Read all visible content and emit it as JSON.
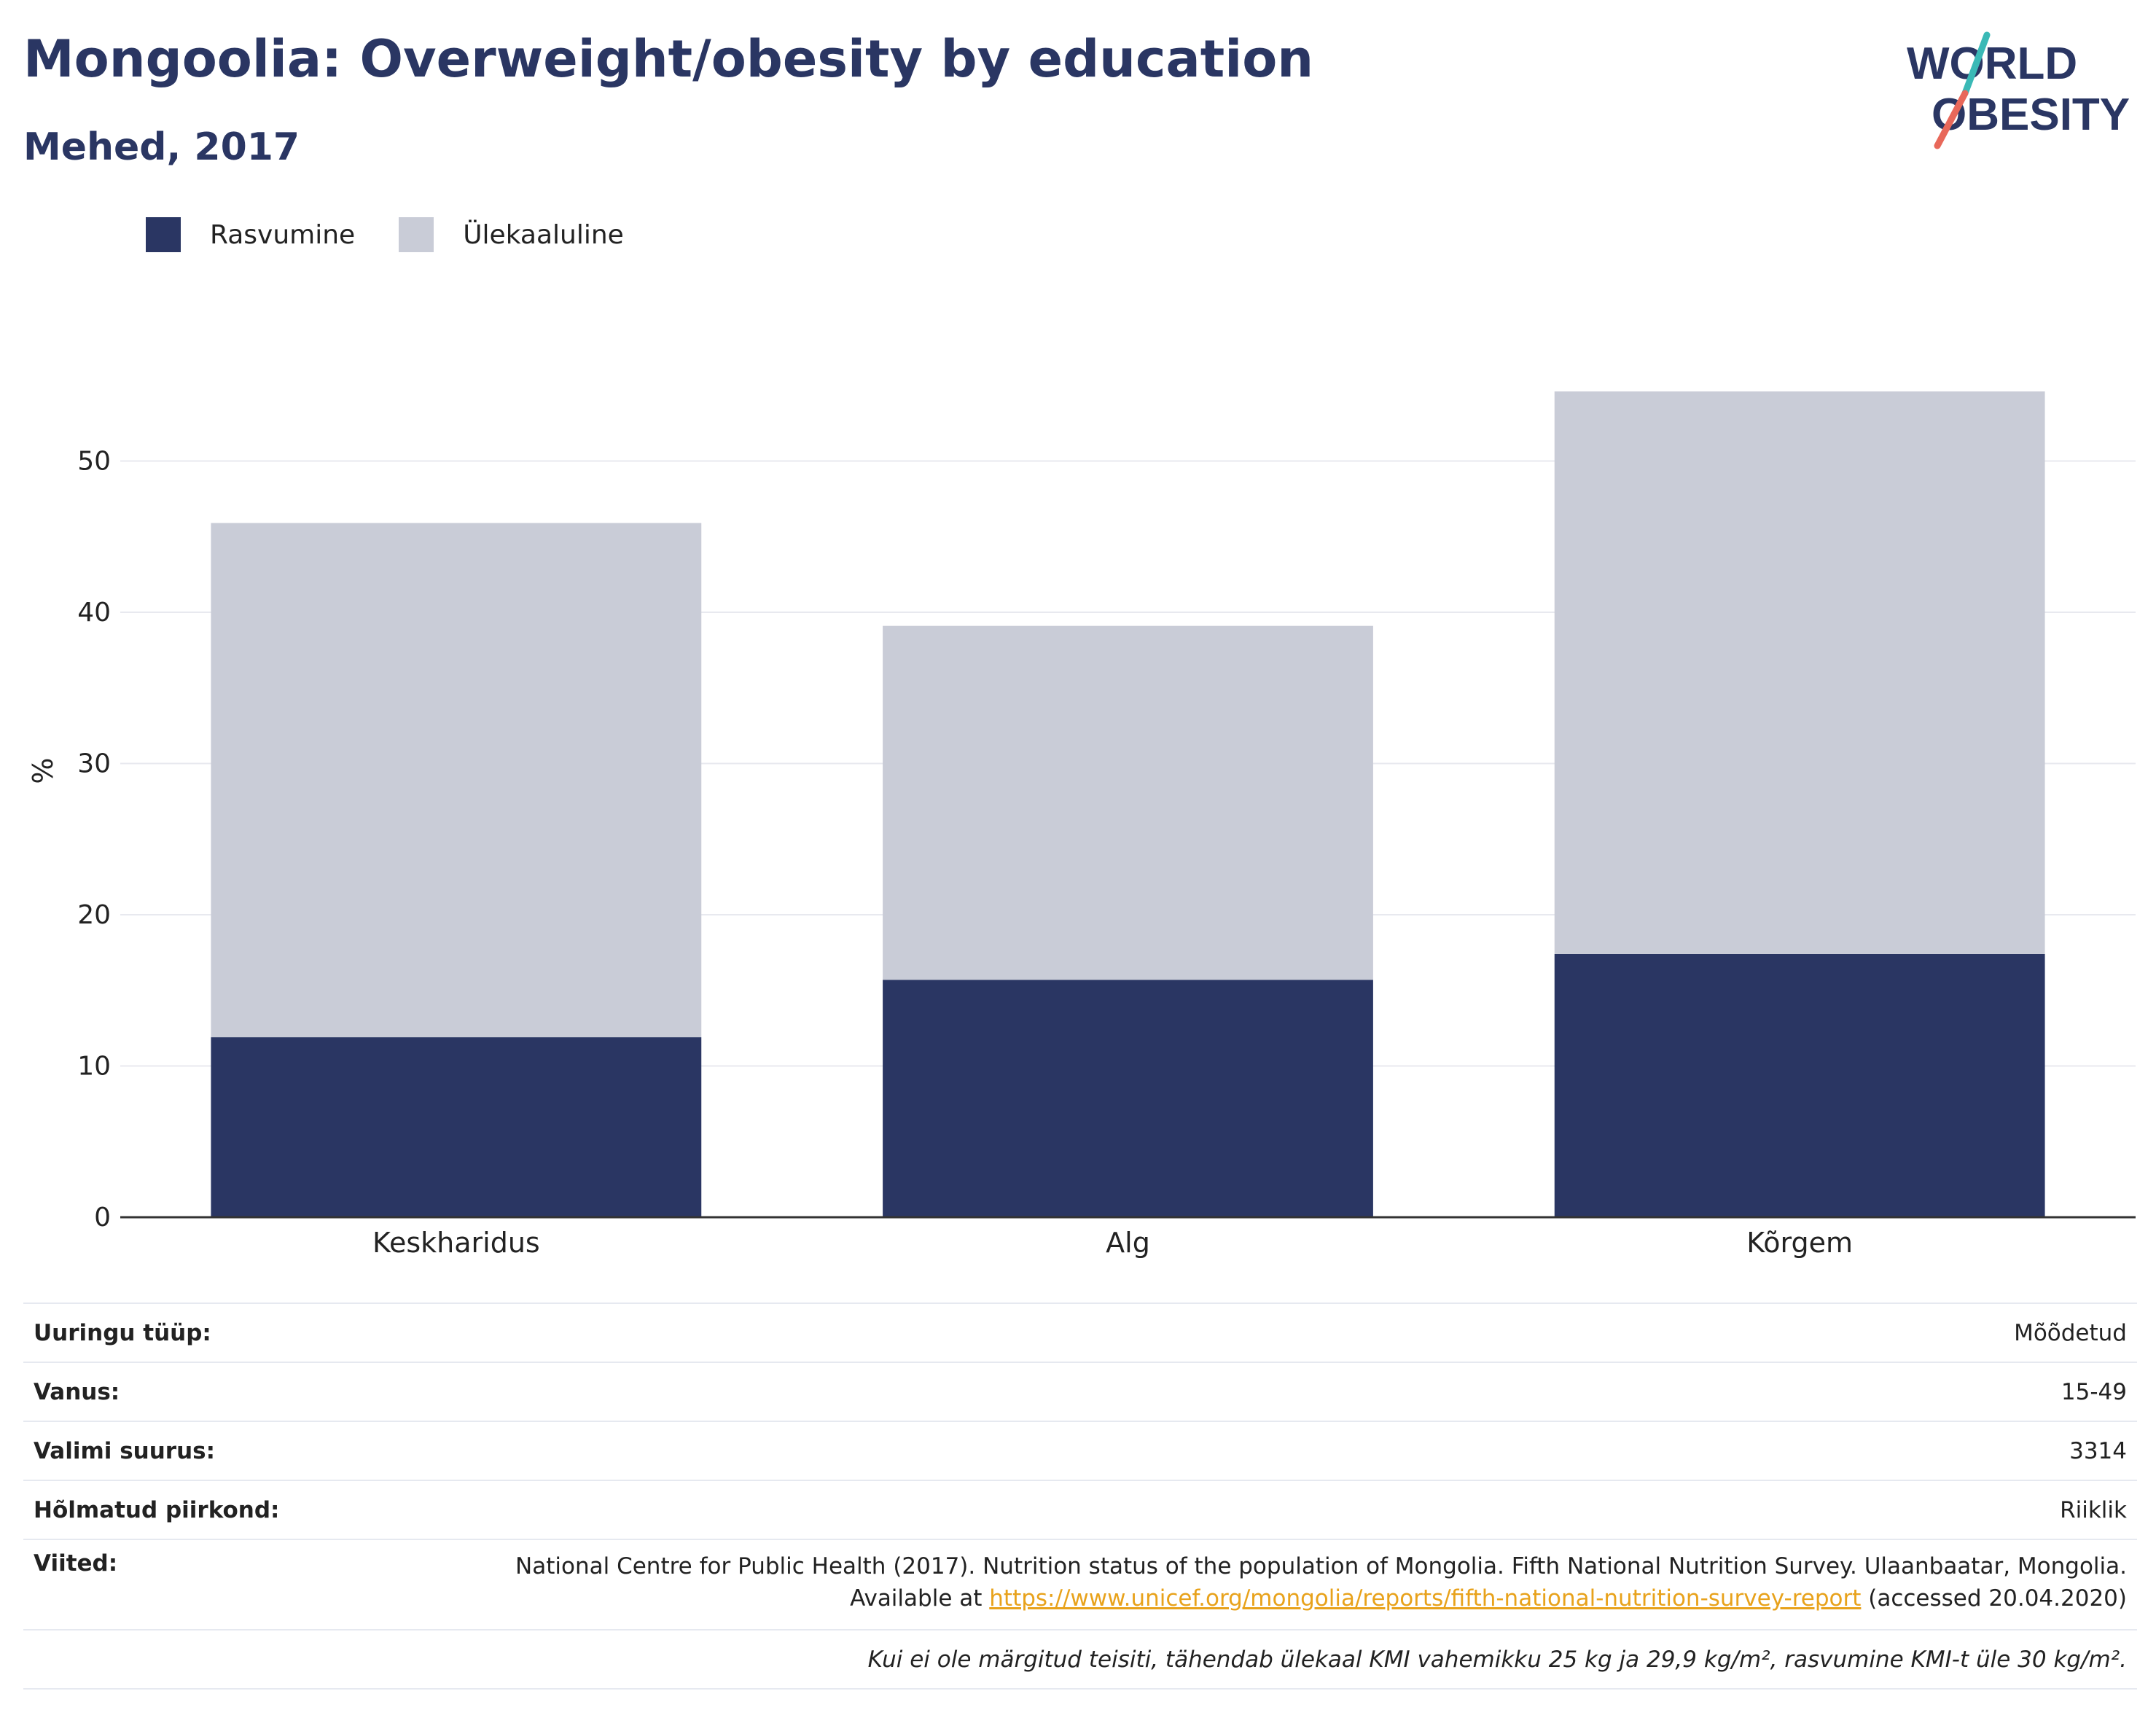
{
  "title": "Mongoolia: Overweight/obesity by education",
  "subtitle": "Mehed, 2017",
  "logo": {
    "line1": "WORLD",
    "line2": "OBESITY",
    "colors": {
      "text": "#2a3663",
      "slash_top": "#3ab9b6",
      "slash_bottom": "#e8685a"
    }
  },
  "legend": [
    {
      "label": "Rasvumine",
      "color": "#2a3663"
    },
    {
      "label": "Ülekaaluline",
      "color": "#c9ccd7"
    }
  ],
  "chart_data": {
    "type": "bar",
    "stacked": true,
    "categories": [
      "Keskharidus",
      "Alg",
      "Kõrgem"
    ],
    "series": [
      {
        "name": "Rasvumine",
        "color": "#2a3663",
        "values": [
          11.9,
          15.7,
          17.4
        ]
      },
      {
        "name": "Ülekaaluline",
        "color": "#c9ccd7",
        "values": [
          34.0,
          23.4,
          37.2
        ]
      }
    ],
    "ylabel": "%",
    "yticks": [
      0,
      10,
      20,
      30,
      40,
      50
    ],
    "ylim": [
      0,
      60
    ],
    "grid": true,
    "legend_position": "top-left"
  },
  "info": {
    "survey_type": {
      "label": "Uuringu tüüp:",
      "value": "Mõõdetud"
    },
    "age": {
      "label": "Vanus:",
      "value": "15-49"
    },
    "sample": {
      "label": "Valimi suurus:",
      "value": "3314"
    },
    "region": {
      "label": "Hõlmatud piirkond:",
      "value": "Riiklik"
    },
    "references": {
      "label": "Viited:",
      "text_before": "National Centre for Public Health (2017). Nutrition status of the population of Mongolia. Fifth National Nutrition Survey. Ulaanbaatar, Mongolia. Available at ",
      "link": "https://www.unicef.org/mongolia/reports/fifth-national-nutrition-survey-report",
      "text_after": " (accessed 20.04.2020)"
    },
    "note": "Kui ei ole märgitud teisiti, tähendab ülekaal KMI vahemikku 25 kg ja 29,9 kg/m², rasvumine KMI-t üle 30 kg/m²."
  }
}
